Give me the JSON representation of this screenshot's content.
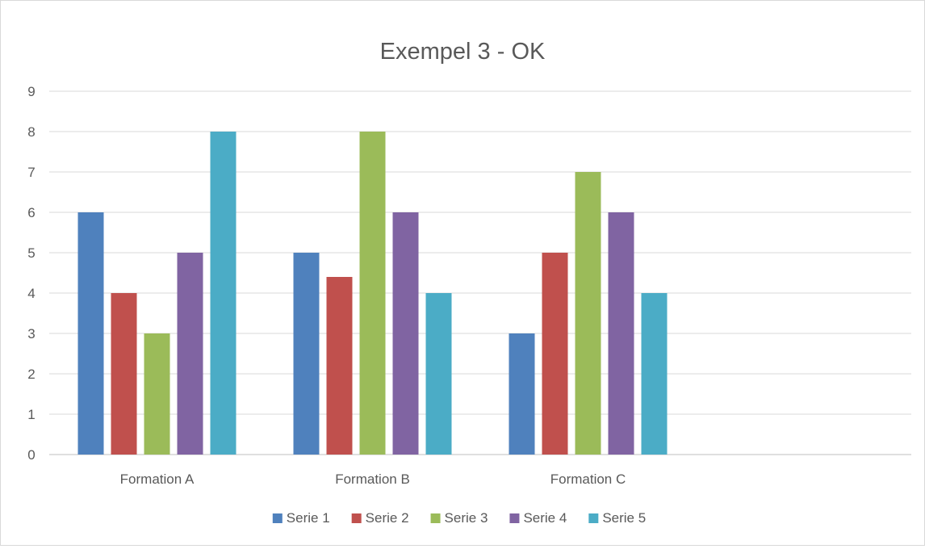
{
  "chart_data": {
    "type": "bar",
    "title": "Exempel 3 - OK",
    "xlabel": "",
    "ylabel": "",
    "ylim": [
      0,
      9
    ],
    "yticks": [
      "0",
      "1",
      "2",
      "3",
      "4",
      "5",
      "6",
      "7",
      "8",
      "9"
    ],
    "grid": true,
    "legend_position": "bottom",
    "categories": [
      "Formation A",
      "Formation B",
      "Formation C",
      ""
    ],
    "series": [
      {
        "name": "Serie 1",
        "color": "#4f81bd",
        "values": [
          6,
          5,
          3,
          null
        ]
      },
      {
        "name": "Serie 2",
        "color": "#c0504d",
        "values": [
          4,
          4.4,
          5,
          null
        ]
      },
      {
        "name": "Serie 3",
        "color": "#9bbb59",
        "values": [
          3,
          8,
          7,
          null
        ]
      },
      {
        "name": "Serie 4",
        "color": "#8064a2",
        "values": [
          5,
          6,
          6,
          null
        ]
      },
      {
        "name": "Serie 5",
        "color": "#4bacc6",
        "values": [
          8,
          4,
          4,
          null
        ]
      }
    ]
  }
}
